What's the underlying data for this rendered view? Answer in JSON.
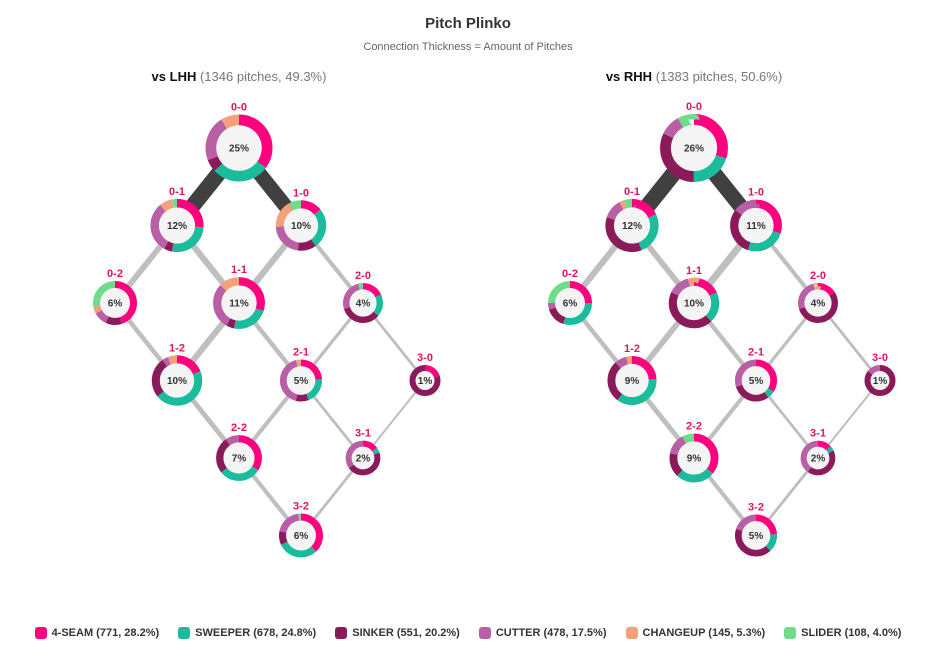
{
  "colors": {
    "4-SEAM": "#ff007f",
    "SWEEPER": "#1abc9c",
    "SINKER": "#8b1a5a",
    "CUTTER": "#b85fa6",
    "CHANGEUP": "#f4a07a",
    "SLIDER": "#6fdc8c",
    "count_label": "#e0145e",
    "edge": "#404040"
  },
  "chart_data": {
    "type": "network",
    "title": "Pitch Plinko",
    "subtitle": "Connection Thickness = Amount of Pitches",
    "legend": [
      {
        "pitch": "4-SEAM",
        "label": "4-SEAM (771, 28.2%)"
      },
      {
        "pitch": "SWEEPER",
        "label": "SWEEPER (678, 24.8%)"
      },
      {
        "pitch": "SINKER",
        "label": "SINKER (551, 20.2%)"
      },
      {
        "pitch": "CUTTER",
        "label": "CUTTER (478, 17.5%)"
      },
      {
        "pitch": "CHANGEUP",
        "label": "CHANGEUP (145, 5.3%)"
      },
      {
        "pitch": "SLIDER",
        "label": "SLIDER (108, 4.0%)"
      }
    ],
    "panels": [
      {
        "id": "lhh",
        "hand": "vs LHH",
        "info": "(1346 pitches, 49.3%)",
        "nodes": [
          {
            "count": "0-0",
            "pct": 25,
            "label": "25%",
            "mix": {
              "4-SEAM": 35,
              "SWEEPER": 28,
              "CUTTER": 22,
              "SINKER": 6,
              "CHANGEUP": 9
            }
          },
          {
            "count": "0-1",
            "pct": 12,
            "label": "12%",
            "mix": {
              "4-SEAM": 26,
              "CUTTER": 31,
              "SWEEPER": 27,
              "CHANGEUP": 8,
              "SINKER": 5,
              "SLIDER": 3
            }
          },
          {
            "count": "1-0",
            "pct": 10,
            "label": "10%",
            "mix": {
              "4-SEAM": 14,
              "CUTTER": 22,
              "CHANGEUP": 18,
              "SWEEPER": 26,
              "SINKER": 12,
              "SLIDER": 8
            }
          },
          {
            "count": "0-2",
            "pct": 6,
            "label": "6%",
            "mix": {
              "4-SEAM": 45,
              "SLIDER": 28,
              "SINKER": 12,
              "CHANGEUP": 5,
              "CUTTER": 10
            }
          },
          {
            "count": "1-1",
            "pct": 11,
            "label": "11%",
            "mix": {
              "CUTTER": 29,
              "SWEEPER": 23,
              "4-SEAM": 30,
              "CHANGEUP": 13,
              "SINKER": 5
            }
          },
          {
            "count": "2-0",
            "pct": 4,
            "label": "4%",
            "mix": {
              "CUTTER": 26,
              "SINKER": 34,
              "4-SEAM": 18,
              "SWEEPER": 18,
              "SLIDER": 4
            }
          },
          {
            "count": "1-2",
            "pct": 10,
            "label": "10%",
            "mix": {
              "SWEEPER": 45,
              "4-SEAM": 19,
              "SINKER": 26,
              "CHANGEUP": 6,
              "CUTTER": 4
            }
          },
          {
            "count": "2-1",
            "pct": 5,
            "label": "5%",
            "mix": {
              "CUTTER": 42,
              "4-SEAM": 24,
              "SWEEPER": 20,
              "SINKER": 10,
              "CHANGEUP": 4
            }
          },
          {
            "count": "3-0",
            "pct": 1,
            "label": "1%",
            "mix": {
              "SINKER": 80,
              "4-SEAM": 20
            }
          },
          {
            "count": "2-2",
            "pct": 7,
            "label": "7%",
            "mix": {
              "SWEEPER": 30,
              "4-SEAM": 34,
              "SINKER": 26,
              "CUTTER": 10
            }
          },
          {
            "count": "3-1",
            "pct": 2,
            "label": "2%",
            "mix": {
              "SINKER": 45,
              "CUTTER": 35,
              "4-SEAM": 15,
              "SWEEPER": 5
            }
          },
          {
            "count": "3-2",
            "pct": 6,
            "label": "6%",
            "mix": {
              "SWEEPER": 30,
              "4-SEAM": 38,
              "SINKER": 10,
              "CUTTER": 20,
              "SLIDER": 2
            }
          }
        ],
        "edges": [
          {
            "from": "0-0",
            "to": "0-1",
            "pitches": 175
          },
          {
            "from": "0-0",
            "to": "1-0",
            "pitches": 160
          },
          {
            "from": "0-1",
            "to": "0-2",
            "pitches": 55
          },
          {
            "from": "0-1",
            "to": "1-1",
            "pitches": 60
          },
          {
            "from": "1-0",
            "to": "1-1",
            "pitches": 60
          },
          {
            "from": "1-0",
            "to": "2-0",
            "pitches": 35
          },
          {
            "from": "0-2",
            "to": "1-2",
            "pitches": 40
          },
          {
            "from": "1-1",
            "to": "1-2",
            "pitches": 60
          },
          {
            "from": "1-1",
            "to": "2-1",
            "pitches": 40
          },
          {
            "from": "2-0",
            "to": "2-1",
            "pitches": 25
          },
          {
            "from": "2-0",
            "to": "3-0",
            "pitches": 20
          },
          {
            "from": "1-2",
            "to": "2-2",
            "pitches": 45
          },
          {
            "from": "2-1",
            "to": "2-2",
            "pitches": 35
          },
          {
            "from": "2-1",
            "to": "3-1",
            "pitches": 20
          },
          {
            "from": "3-0",
            "to": "3-1",
            "pitches": 10
          },
          {
            "from": "2-2",
            "to": "3-2",
            "pitches": 35
          },
          {
            "from": "3-1",
            "to": "3-2",
            "pitches": 20
          }
        ]
      },
      {
        "id": "rhh",
        "hand": "vs RHH",
        "info": "(1383 pitches, 50.6%)",
        "nodes": [
          {
            "count": "0-0",
            "pct": 26,
            "label": "26%",
            "mix": {
              "4-SEAM": 30,
              "SINKER": 32,
              "SWEEPER": 20,
              "CUTTER": 10,
              "SLIDER": 8
            }
          },
          {
            "count": "0-1",
            "pct": 12,
            "label": "12%",
            "mix": {
              "SINKER": 36,
              "SWEEPER": 26,
              "4-SEAM": 18,
              "CUTTER": 12,
              "SLIDER": 5,
              "CHANGEUP": 3
            }
          },
          {
            "count": "1-0",
            "pct": 11,
            "label": "11%",
            "mix": {
              "4-SEAM": 30,
              "SINKER": 30,
              "CUTTER": 15,
              "SWEEPER": 25
            }
          },
          {
            "count": "0-2",
            "pct": 6,
            "label": "6%",
            "mix": {
              "SWEEPER": 30,
              "4-SEAM": 25,
              "SLIDER": 25,
              "SINKER": 15,
              "CUTTER": 5
            }
          },
          {
            "count": "1-1",
            "pct": 10,
            "label": "10%",
            "mix": {
              "SINKER": 44,
              "SWEEPER": 20,
              "4-SEAM": 18,
              "CUTTER": 14,
              "CHANGEUP": 4
            }
          },
          {
            "count": "2-0",
            "pct": 4,
            "label": "4%",
            "mix": {
              "SINKER": 54,
              "CUTTER": 26,
              "4-SEAM": 16,
              "CHANGEUP": 4
            }
          },
          {
            "count": "1-2",
            "pct": 9,
            "label": "9%",
            "mix": {
              "SWEEPER": 36,
              "4-SEAM": 24,
              "SINKER": 28,
              "CUTTER": 8,
              "CHANGEUP": 4
            }
          },
          {
            "count": "2-1",
            "pct": 5,
            "label": "5%",
            "mix": {
              "SINKER": 30,
              "4-SEAM": 34,
              "CUTTER": 30,
              "SWEEPER": 6
            }
          },
          {
            "count": "3-0",
            "pct": 1,
            "label": "1%",
            "mix": {
              "SINKER": 85,
              "CUTTER": 15
            }
          },
          {
            "count": "2-2",
            "pct": 9,
            "label": "9%",
            "mix": {
              "4-SEAM": 36,
              "SINKER": 16,
              "SWEEPER": 26,
              "CUTTER": 14,
              "SLIDER": 8
            }
          },
          {
            "count": "3-1",
            "pct": 2,
            "label": "2%",
            "mix": {
              "SINKER": 42,
              "CUTTER": 40,
              "4-SEAM": 13,
              "SWEEPER": 5
            }
          },
          {
            "count": "3-2",
            "pct": 5,
            "label": "5%",
            "mix": {
              "SINKER": 42,
              "4-SEAM": 24,
              "SWEEPER": 14,
              "CUTTER": 20
            }
          }
        ],
        "edges": [
          {
            "from": "0-0",
            "to": "0-1",
            "pitches": 180
          },
          {
            "from": "0-0",
            "to": "1-0",
            "pitches": 170
          },
          {
            "from": "0-1",
            "to": "0-2",
            "pitches": 60
          },
          {
            "from": "0-1",
            "to": "1-1",
            "pitches": 55
          },
          {
            "from": "1-0",
            "to": "1-1",
            "pitches": 70
          },
          {
            "from": "1-0",
            "to": "2-0",
            "pitches": 35
          },
          {
            "from": "0-2",
            "to": "1-2",
            "pitches": 40
          },
          {
            "from": "1-1",
            "to": "1-2",
            "pitches": 55
          },
          {
            "from": "1-1",
            "to": "2-1",
            "pitches": 40
          },
          {
            "from": "2-0",
            "to": "2-1",
            "pitches": 25
          },
          {
            "from": "2-0",
            "to": "3-0",
            "pitches": 20
          },
          {
            "from": "1-2",
            "to": "2-2",
            "pitches": 45
          },
          {
            "from": "2-1",
            "to": "2-2",
            "pitches": 35
          },
          {
            "from": "2-1",
            "to": "3-1",
            "pitches": 20
          },
          {
            "from": "3-0",
            "to": "3-1",
            "pitches": 10
          },
          {
            "from": "2-2",
            "to": "3-2",
            "pitches": 35
          },
          {
            "from": "3-1",
            "to": "3-2",
            "pitches": 20
          }
        ]
      }
    ]
  }
}
